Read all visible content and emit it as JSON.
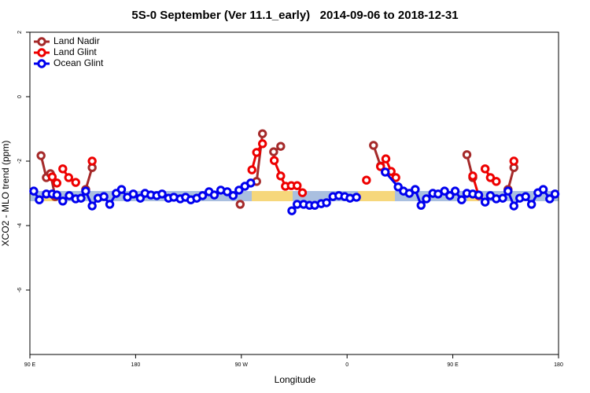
{
  "chart_data": {
    "type": "line",
    "title": "5S-0 September (Ver 11.1_early)   2014-09-06 to 2018-12-31",
    "x_label": "Longitude",
    "y_label": "XCO2 - MLO trend (ppm)",
    "xlim": [
      90,
      540
    ],
    "xticks": [
      {
        "value": 90,
        "label": "90 E"
      },
      {
        "value": 180,
        "label": "180"
      },
      {
        "value": 270,
        "label": "90 W"
      },
      {
        "value": 360,
        "label": "0"
      },
      {
        "value": 450,
        "label": "90 E"
      },
      {
        "value": 540,
        "label": "180"
      }
    ],
    "ylim": [
      -8,
      2
    ],
    "yticks": [
      -6,
      -4,
      -2,
      0,
      2
    ],
    "legend": "top-left",
    "series": [
      {
        "name": "Land Nadir",
        "color": "#a52a2a",
        "x": [
          99.5,
          104,
          107.5,
          111.5,
          null,
          137.5,
          143,
          null,
          269,
          null,
          283,
          288,
          null,
          297.5,
          303.5,
          null,
          382.5,
          388.5,
          null,
          462,
          467,
          null,
          497,
          502
        ],
        "values": [
          -1.83,
          -2.51,
          -2.39,
          -3.1,
          null,
          -2.88,
          -2.2,
          null,
          -3.34,
          null,
          -2.63,
          -1.15,
          null,
          -1.71,
          -1.54,
          null,
          -1.51,
          -2.15,
          null,
          -1.8,
          -2.51,
          null,
          -2.88,
          -2.2
        ]
      },
      {
        "name": "Land Glint",
        "color": "#ee0000",
        "x": [
          109,
          113,
          null,
          118,
          123,
          129,
          null,
          143,
          null,
          279,
          283,
          288,
          null,
          298,
          303.5,
          307.5,
          312.5,
          317.5,
          322,
          null,
          376.5,
          null,
          388.5,
          393,
          397.5,
          401.5,
          null,
          467,
          472,
          null,
          477.5,
          482,
          487,
          null,
          502
        ],
        "values": [
          -2.49,
          -2.68,
          null,
          -2.24,
          -2.51,
          -2.66,
          null,
          -2.0,
          null,
          -2.27,
          -1.73,
          -1.46,
          null,
          -1.98,
          -2.46,
          -2.78,
          -2.76,
          -2.76,
          -2.98,
          null,
          -2.59,
          null,
          -2.17,
          -1.93,
          -2.32,
          -2.51,
          null,
          -2.46,
          -3.07,
          null,
          -2.24,
          -2.51,
          -2.63,
          null,
          -2.0
        ]
      },
      {
        "name": "Ocean Glint",
        "color": "#0000ee",
        "x": [
          93.3,
          98,
          104,
          109,
          113,
          118,
          123.5,
          129,
          133.5,
          137.5,
          143,
          148,
          153,
          158,
          163.5,
          168,
          173,
          178,
          184,
          188,
          193,
          198,
          202.5,
          208,
          212.5,
          218,
          222.5,
          227,
          232,
          237,
          242.5,
          247,
          252.5,
          258,
          263,
          268,
          273,
          278,
          null,
          313,
          317.5,
          323,
          328,
          332.5,
          338,
          342.5,
          348,
          353,
          358,
          362.5,
          368,
          null,
          392.5,
          403.5,
          408,
          413,
          418,
          423,
          427.5,
          433,
          437.5,
          443,
          447.5,
          452,
          457.5,
          462,
          467,
          472,
          477.5,
          482,
          487,
          492.5,
          497,
          502,
          507,
          512,
          517,
          522.5,
          527,
          532.5,
          537
        ],
        "values": [
          -2.93,
          -3.2,
          -3.02,
          -3.02,
          -3.05,
          -3.24,
          -3.07,
          -3.17,
          -3.15,
          -2.93,
          -3.39,
          -3.15,
          -3.1,
          -3.34,
          -3.0,
          -2.88,
          -3.12,
          -3.02,
          -3.15,
          -3.0,
          -3.05,
          -3.07,
          -3.02,
          -3.15,
          -3.12,
          -3.17,
          -3.12,
          -3.2,
          -3.15,
          -3.07,
          -2.95,
          -3.05,
          -2.9,
          -2.95,
          -3.07,
          -2.9,
          -2.78,
          -2.68,
          null,
          -3.54,
          -3.34,
          -3.34,
          -3.37,
          -3.37,
          -3.32,
          -3.29,
          -3.1,
          -3.07,
          -3.1,
          -3.15,
          -3.12,
          null,
          -2.34,
          -2.8,
          -2.93,
          -3.0,
          -2.88,
          -3.37,
          -3.17,
          -3.0,
          -3.02,
          -2.93,
          -3.07,
          -2.93,
          -3.2,
          -3.0,
          -3.02,
          -3.05,
          -3.27,
          -3.07,
          -3.17,
          -3.15,
          -2.93,
          -3.39,
          -3.15,
          -3.1,
          -3.34,
          -2.98,
          -2.88,
          -3.17,
          -3.02
        ]
      }
    ]
  }
}
